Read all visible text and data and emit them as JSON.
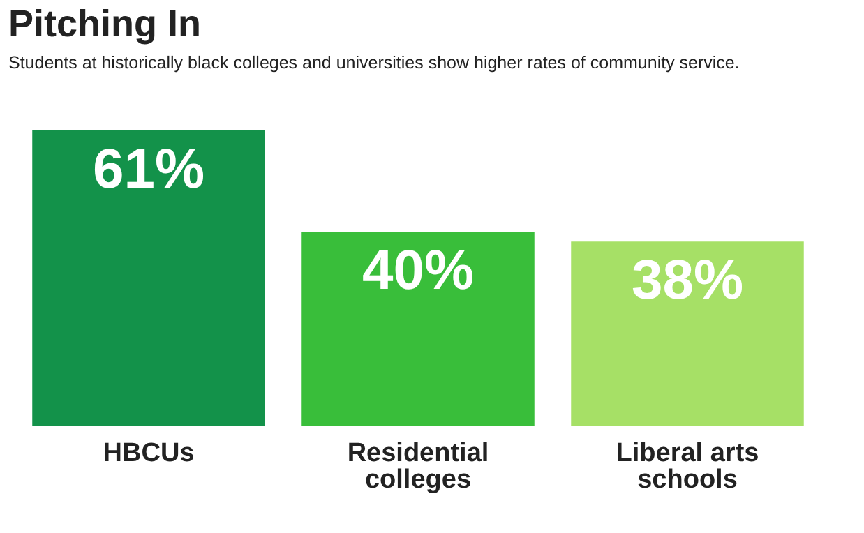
{
  "chart_data": {
    "type": "bar",
    "title": "Pitching In",
    "subtitle": "Students at historically black colleges and universities show higher rates of community service.",
    "categories": [
      "HBCUs",
      "Residential colleges",
      "Liberal arts schools"
    ],
    "values": [
      61,
      40,
      38
    ],
    "colors": [
      "#13924a",
      "#39be3a",
      "#a6e066"
    ],
    "value_labels": [
      "61%",
      "40%",
      "38%"
    ],
    "grid": false,
    "legend": false
  }
}
